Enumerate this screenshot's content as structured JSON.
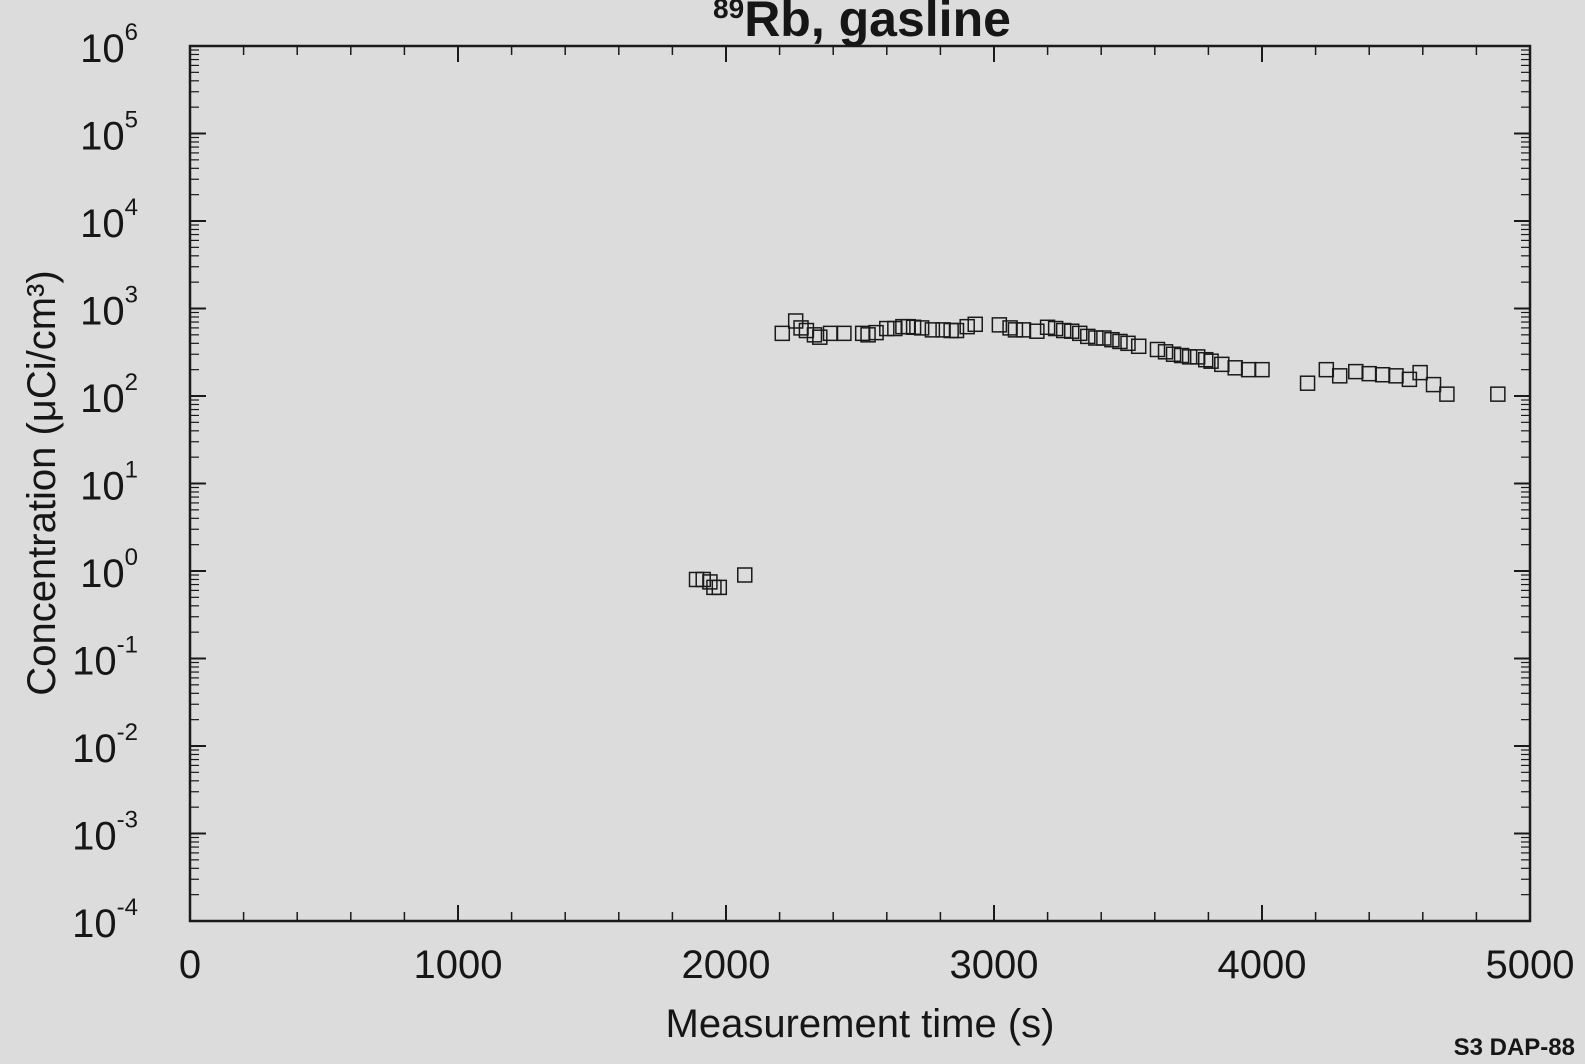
{
  "chart_data": {
    "type": "scatter",
    "title": {
      "superscript": "89",
      "text": "Rb, gasline"
    },
    "xlabel": "Measurement time (s)",
    "ylabel": "Concentration (μCi/cm³)",
    "xlim": [
      0,
      5000
    ],
    "ylim": [
      0.0001,
      1000000
    ],
    "y_scale": "log",
    "grid": false,
    "marker": "open-square",
    "x_ticks": [
      {
        "value": 0,
        "label": "0"
      },
      {
        "value": 1000,
        "label": "1000"
      },
      {
        "value": 2000,
        "label": "2000"
      },
      {
        "value": 3000,
        "label": "3000"
      },
      {
        "value": 4000,
        "label": "4000"
      },
      {
        "value": 5000,
        "label": "5000"
      }
    ],
    "y_ticks": [
      {
        "value": 1000000,
        "base": "10",
        "exp": "6"
      },
      {
        "value": 100000,
        "base": "10",
        "exp": "5"
      },
      {
        "value": 10000,
        "base": "10",
        "exp": "4"
      },
      {
        "value": 1000,
        "base": "10",
        "exp": "3"
      },
      {
        "value": 100,
        "base": "10",
        "exp": "2"
      },
      {
        "value": 10,
        "base": "10",
        "exp": "1"
      },
      {
        "value": 1,
        "base": "10",
        "exp": "0"
      },
      {
        "value": 0.1,
        "base": "10",
        "exp": "-1"
      },
      {
        "value": 0.01,
        "base": "10",
        "exp": "-2"
      },
      {
        "value": 0.001,
        "base": "10",
        "exp": "-3"
      },
      {
        "value": 0.0001,
        "base": "10",
        "exp": "-4"
      }
    ],
    "x": [
      1890,
      1915,
      1940,
      1955,
      1975,
      2070,
      2210,
      2260,
      2280,
      2300,
      2330,
      2350,
      2390,
      2440,
      2510,
      2530,
      2560,
      2600,
      2630,
      2660,
      2680,
      2700,
      2730,
      2770,
      2810,
      2840,
      2860,
      2900,
      2930,
      3020,
      3060,
      3080,
      3110,
      3160,
      3200,
      3230,
      3260,
      3290,
      3320,
      3350,
      3380,
      3410,
      3440,
      3470,
      3500,
      3540,
      3610,
      3640,
      3670,
      3700,
      3730,
      3760,
      3790,
      3810,
      3850,
      3900,
      3950,
      4000,
      4170,
      4240,
      4290,
      4350,
      4400,
      4450,
      4500,
      4550,
      4590,
      4640,
      4690,
      4880
    ],
    "y": [
      0.8,
      0.8,
      0.75,
      0.65,
      0.65,
      0.9,
      520,
      720,
      600,
      560,
      500,
      470,
      520,
      520,
      520,
      500,
      530,
      590,
      590,
      620,
      620,
      610,
      600,
      570,
      570,
      560,
      560,
      620,
      660,
      650,
      600,
      570,
      570,
      550,
      610,
      590,
      560,
      550,
      520,
      480,
      460,
      460,
      440,
      420,
      400,
      370,
      340,
      320,
      300,
      290,
      280,
      280,
      260,
      250,
      230,
      210,
      200,
      200,
      140,
      200,
      170,
      190,
      180,
      175,
      170,
      155,
      185,
      135,
      105,
      105
    ]
  },
  "annotation": {
    "code": "S3 DAP-88"
  }
}
